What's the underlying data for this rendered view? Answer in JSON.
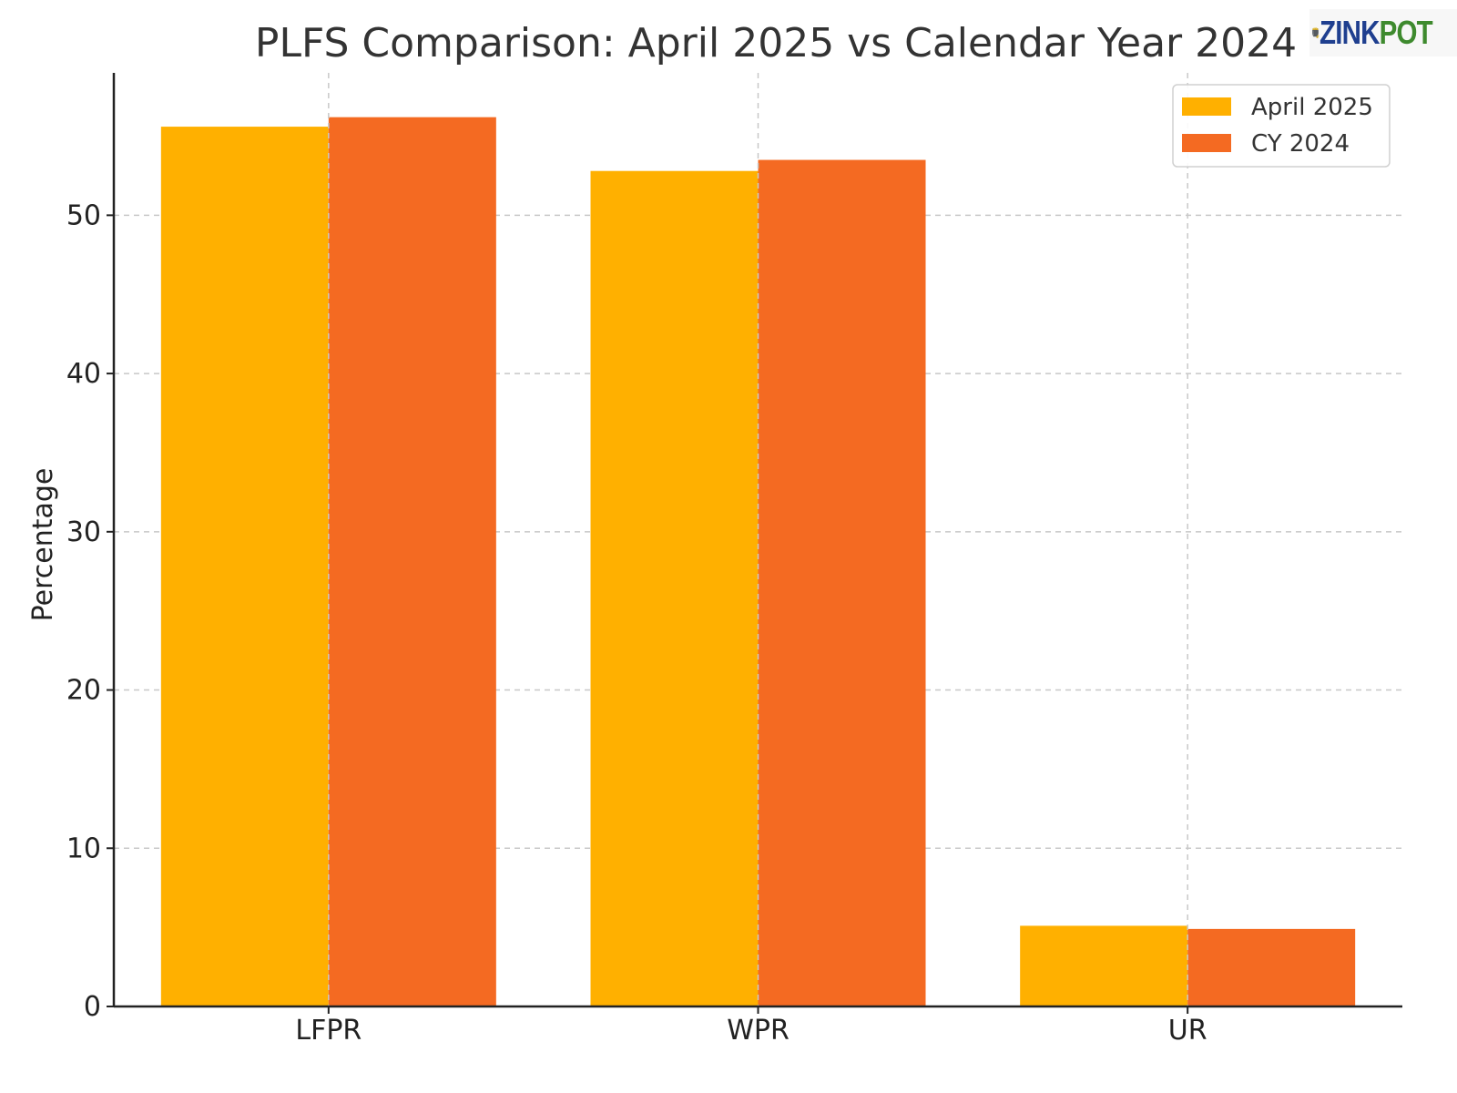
{
  "chart_data": {
    "type": "bar",
    "title": "PLFS Comparison: April 2025 vs Calendar Year 2024",
    "xlabel": "",
    "ylabel": "Percentage",
    "categories": [
      "LFPR",
      "WPR",
      "UR"
    ],
    "series": [
      {
        "name": "April 2025",
        "color": "#FFB000",
        "values": [
          55.6,
          52.8,
          5.1
        ]
      },
      {
        "name": "CY 2024",
        "color": "#F46A22",
        "values": [
          56.2,
          53.5,
          4.9
        ]
      }
    ],
    "ylim": [
      0,
      59
    ],
    "yticks": [
      0,
      10,
      20,
      30,
      40,
      50
    ],
    "grid": true,
    "legend_position": "top-right"
  },
  "logo": {
    "text_part1": "ZINK",
    "text_part2": "POT",
    "icon": "money-pot-icon"
  }
}
